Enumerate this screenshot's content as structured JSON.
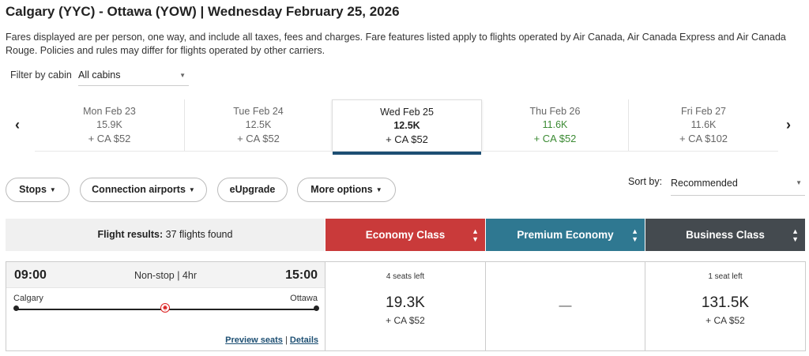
{
  "header": {
    "title": "Calgary (YYC) - Ottawa (YOW)  |  Wednesday February 25, 2026",
    "notice": "Fares displayed are per person, one way, and include all taxes, fees and charges. Fare features listed apply to flights operated by Air Canada, Air Canada Express and Air Canada Rouge. Policies and rules may differ for flights operated by other carriers."
  },
  "cabin_filter": {
    "label": "Filter by cabin",
    "value": "All cabins"
  },
  "date_nav": {
    "prev_icon": "chevron-left-icon",
    "next_icon": "chevron-right-icon",
    "days": [
      {
        "date": "Mon Feb 23",
        "points": "15.9K",
        "cash": "+ CA $52"
      },
      {
        "date": "Tue Feb 24",
        "points": "12.5K",
        "cash": "+ CA $52"
      },
      {
        "date": "Wed Feb 25",
        "points": "12.5K",
        "cash": "+ CA $52",
        "selected": true
      },
      {
        "date": "Thu Feb 26",
        "points": "11.6K",
        "cash": "+ CA $52",
        "highlight": true
      },
      {
        "date": "Fri Feb 27",
        "points": "11.6K",
        "cash": "+ CA $102"
      }
    ]
  },
  "filters": {
    "stops": "Stops",
    "connection_airports": "Connection airports",
    "eupgrade": "eUpgrade",
    "more_options": "More options"
  },
  "sort": {
    "label": "Sort by:",
    "value": "Recommended"
  },
  "results": {
    "label": "Flight results:",
    "count": "37 flights found"
  },
  "cabins": {
    "economy": {
      "label": "Economy Class",
      "color": "#c93a3a"
    },
    "premium": {
      "label": "Premium Economy",
      "color": "#2f7891"
    },
    "business": {
      "label": "Business Class",
      "color": "#444a4f"
    }
  },
  "flight": {
    "departure_time": "09:00",
    "arrival_time": "15:00",
    "info": "Non-stop | 4hr",
    "origin": "Calgary",
    "destination": "Ottawa",
    "carrier_icon": "maple-leaf-icon",
    "preview_seats": "Preview seats",
    "link_separator": "|",
    "details": "Details",
    "fares": {
      "economy": {
        "seats": "4 seats left",
        "points": "19.3K",
        "cash": "+ CA $52"
      },
      "premium": {
        "unavailable": "—"
      },
      "business": {
        "seats": "1 seat left",
        "points": "131.5K",
        "cash": "+ CA $52"
      }
    }
  }
}
